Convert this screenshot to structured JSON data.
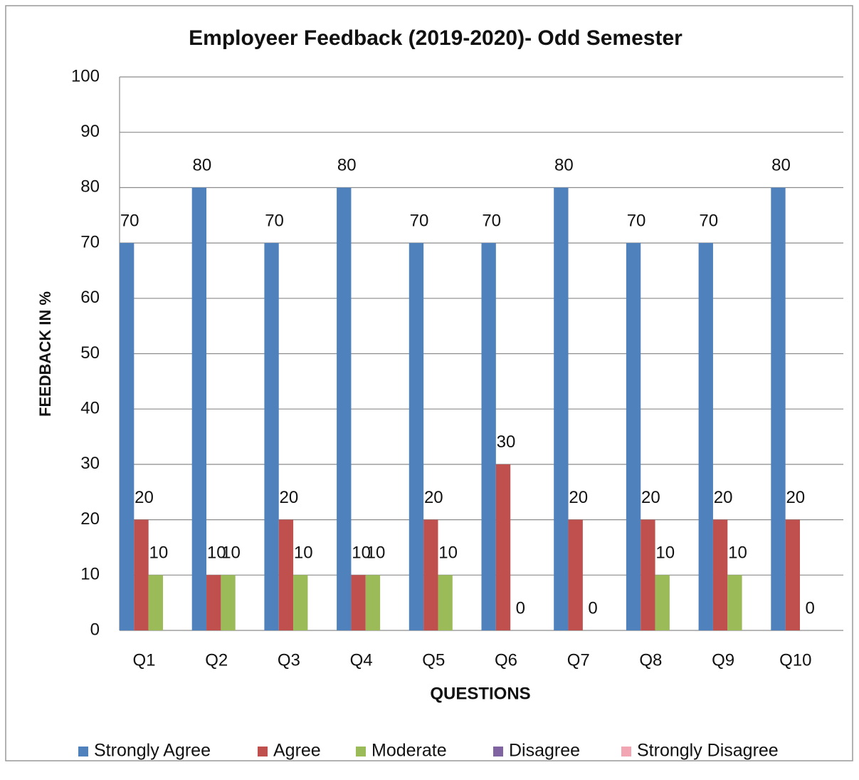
{
  "chart_data": {
    "type": "bar",
    "title": "Employeer Feedback (2019-2020)- Odd Semester",
    "x_label": "QUESTIONS",
    "y_label": "FEEDBACK IN %",
    "categories": [
      "Q1",
      "Q2",
      "Q3",
      "Q4",
      "Q5",
      "Q6",
      "Q7",
      "Q8",
      "Q9",
      "Q10"
    ],
    "series": [
      {
        "name": "Strongly Agree",
        "color": "#4f81bd",
        "values": [
          70,
          80,
          70,
          80,
          70,
          70,
          80,
          70,
          70,
          80
        ]
      },
      {
        "name": "Agree",
        "color": "#c0504d",
        "values": [
          20,
          10,
          20,
          10,
          20,
          30,
          20,
          20,
          20,
          20
        ]
      },
      {
        "name": "Moderate",
        "color": "#9bbb59",
        "values": [
          10,
          10,
          10,
          10,
          10,
          0,
          0,
          10,
          10,
          0
        ]
      },
      {
        "name": "Disagree",
        "color": "#8064a2",
        "values": [
          null,
          null,
          null,
          null,
          null,
          null,
          null,
          null,
          null,
          null
        ]
      },
      {
        "name": "Strongly Disagree",
        "color": "#f2a6b4",
        "values": [
          null,
          null,
          null,
          null,
          null,
          null,
          null,
          null,
          null,
          null
        ]
      }
    ],
    "ylim": [
      0,
      100
    ],
    "yticks": [
      0,
      10,
      20,
      30,
      40,
      50,
      60,
      70,
      80,
      90,
      100
    ],
    "grid": true,
    "legend": "bottom"
  }
}
